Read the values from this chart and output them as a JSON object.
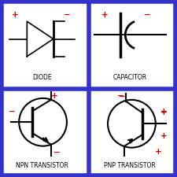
{
  "bg_color": "#ffffff",
  "border_color": "#3333cc",
  "border_width": 4,
  "plus_color": "#cc0000",
  "minus_color": "#cc0000",
  "symbol_color": "#000000",
  "labels": {
    "diode": "DIODE",
    "capacitor": "CAPACITOR",
    "npn": "NPN TRANSISTOR",
    "pnp": "PNP TRANSISTOR"
  },
  "label_fontsize": 5.5,
  "pm_fontsize": 7.5
}
